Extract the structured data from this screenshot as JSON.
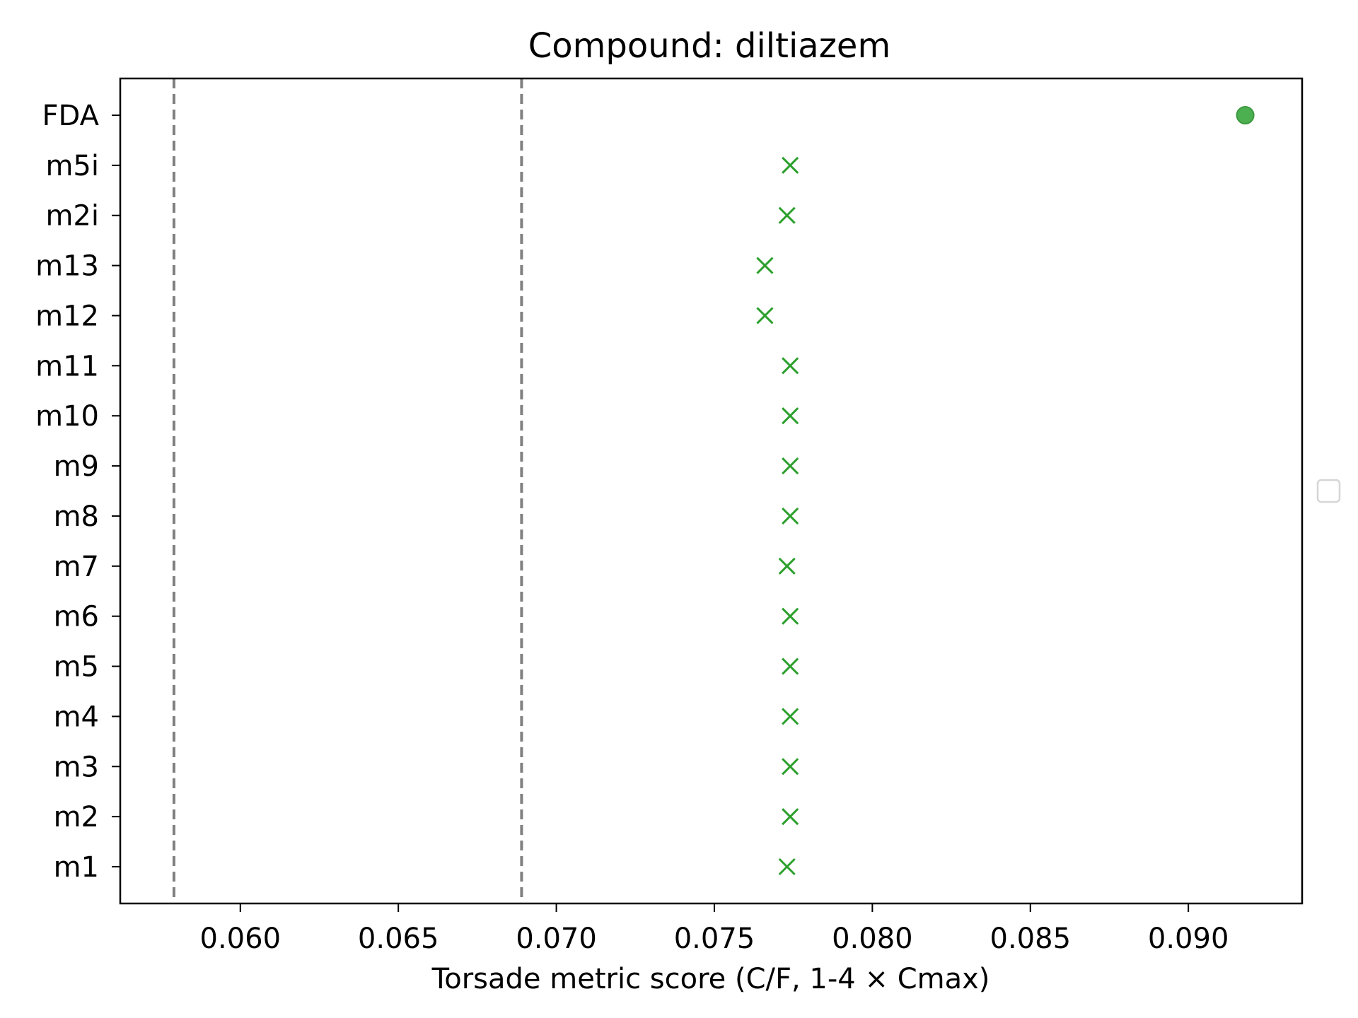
{
  "chart_data": {
    "type": "scatter",
    "title": "Compound: diltiazem",
    "xlabel": "Torsade metric score (C/F, 1-4 × Cmax)",
    "ylabel": "",
    "xlim": [
      0.0562,
      0.0936
    ],
    "x_ticks": [
      0.06,
      0.065,
      0.07,
      0.075,
      0.08,
      0.085,
      0.09
    ],
    "x_tick_labels": [
      "0.060",
      "0.065",
      "0.070",
      "0.075",
      "0.080",
      "0.085",
      "0.090"
    ],
    "categories": [
      "FDA",
      "m5i",
      "m2i",
      "m13",
      "m12",
      "m11",
      "m10",
      "m9",
      "m8",
      "m7",
      "m6",
      "m5",
      "m4",
      "m3",
      "m2",
      "m1"
    ],
    "reference_lines": [
      0.0579,
      0.0689
    ],
    "reference_line_color": "#808080",
    "grid": false,
    "legend": {
      "position": "center-right",
      "entries": []
    },
    "series": [
      {
        "marker": "circle",
        "color": "#4caf50",
        "points": [
          {
            "y": "FDA",
            "x": 0.0918
          }
        ]
      },
      {
        "marker": "x",
        "color": "#2ca02c",
        "points": [
          {
            "y": "m5i",
            "x": 0.0774
          },
          {
            "y": "m2i",
            "x": 0.0773
          },
          {
            "y": "m13",
            "x": 0.0766
          },
          {
            "y": "m12",
            "x": 0.0766
          },
          {
            "y": "m11",
            "x": 0.0774
          },
          {
            "y": "m10",
            "x": 0.0774
          },
          {
            "y": "m9",
            "x": 0.0774
          },
          {
            "y": "m8",
            "x": 0.0774
          },
          {
            "y": "m7",
            "x": 0.0773
          },
          {
            "y": "m6",
            "x": 0.0774
          },
          {
            "y": "m5",
            "x": 0.0774
          },
          {
            "y": "m4",
            "x": 0.0774
          },
          {
            "y": "m3",
            "x": 0.0774
          },
          {
            "y": "m2",
            "x": 0.0774
          },
          {
            "y": "m1",
            "x": 0.0773
          }
        ]
      }
    ]
  }
}
